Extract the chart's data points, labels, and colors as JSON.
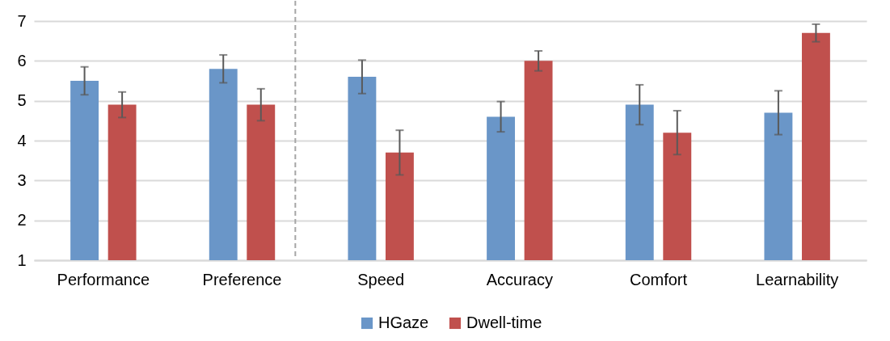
{
  "chart_data": {
    "type": "bar",
    "categories": [
      "Performance",
      "Preference",
      "Speed",
      "Accuracy",
      "Comfort",
      "Learnability"
    ],
    "series": [
      {
        "name": "HGaze",
        "color": "#6a96c8",
        "values": [
          5.5,
          5.8,
          5.6,
          4.6,
          4.9,
          4.7
        ],
        "errors": [
          0.35,
          0.35,
          0.42,
          0.38,
          0.5,
          0.55
        ]
      },
      {
        "name": "Dwell-time",
        "color": "#c0504d",
        "values": [
          4.9,
          4.9,
          3.7,
          6.0,
          4.2,
          6.7
        ],
        "errors": [
          0.32,
          0.4,
          0.56,
          0.25,
          0.55,
          0.22
        ]
      }
    ],
    "ylim": [
      1,
      7
    ],
    "yticks": [
      1,
      2,
      3,
      4,
      5,
      6,
      7
    ],
    "grid": "y",
    "legend": "bottom"
  }
}
